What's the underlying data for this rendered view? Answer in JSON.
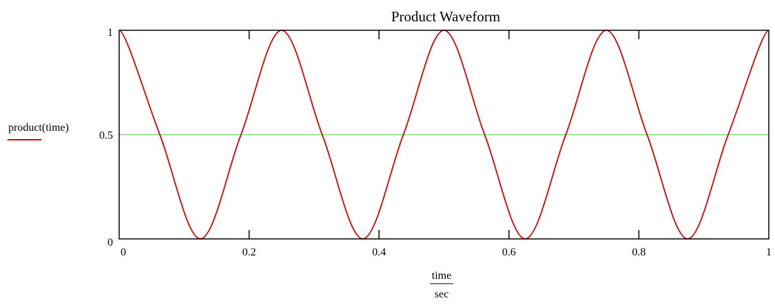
{
  "chart_data": {
    "type": "line",
    "title": "Product Waveform",
    "xlabel_numerator": "time",
    "xlabel_denominator": "sec",
    "ylabel": "product(time)",
    "xlim": [
      0,
      1
    ],
    "ylim": [
      0,
      1
    ],
    "x_ticks": [
      0,
      0.2,
      0.4,
      0.6,
      0.8,
      1
    ],
    "x_tick_labels": [
      "0",
      "0.2",
      "0.4",
      "0.6",
      "0.8",
      "1"
    ],
    "y_ticks": [
      0,
      0.5,
      1
    ],
    "y_tick_labels": [
      "0",
      "0.5",
      "1"
    ],
    "grid": false,
    "series": [
      {
        "name": "product(time)",
        "color": "#dd0000",
        "x": [
          0,
          0.0625,
          0.125,
          0.1875,
          0.25,
          0.3125,
          0.375,
          0.4375,
          0.5,
          0.5625,
          0.625,
          0.6875,
          0.75,
          0.8125,
          0.875,
          0.9375,
          1
        ],
        "y": [
          1,
          0.5,
          0,
          0.5,
          1,
          0.5,
          0,
          0.5,
          1,
          0.5,
          0,
          0.5,
          1,
          0.5,
          0,
          0.5,
          1
        ]
      }
    ],
    "reference_line": {
      "y": 0.5,
      "color": "#7fe07f"
    }
  }
}
